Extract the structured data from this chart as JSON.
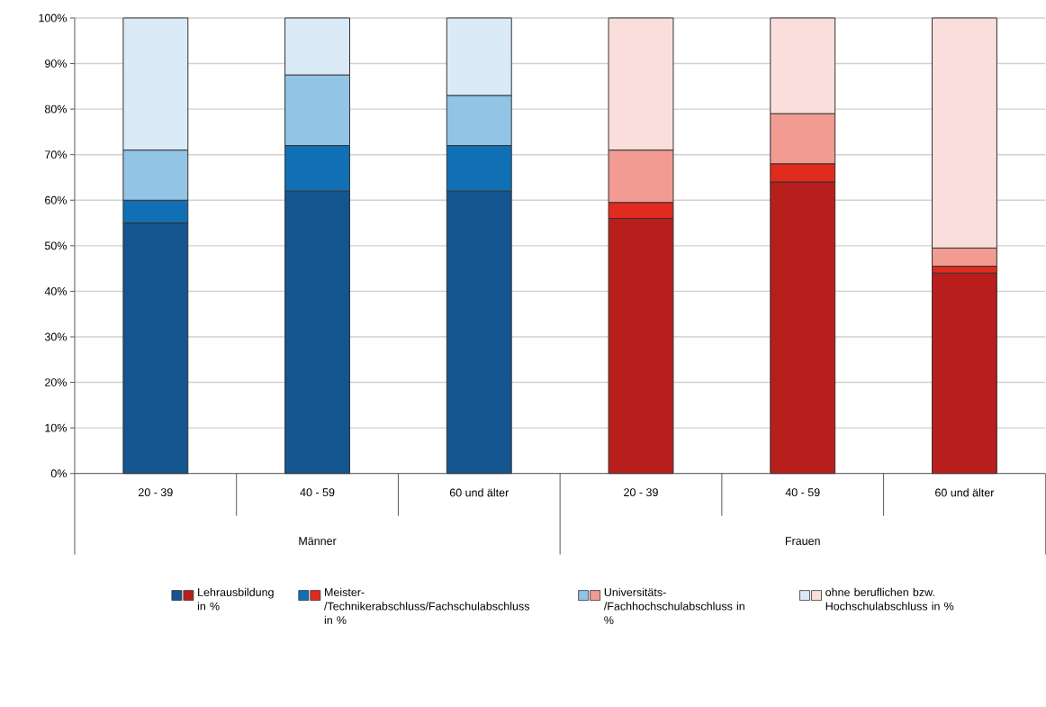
{
  "chart_data": {
    "type": "bar",
    "stacked": true,
    "categories": [
      "20 - 39",
      "40 - 59",
      "60 und älter",
      "20 - 39",
      "40 - 59",
      "60 und älter"
    ],
    "series": [
      {
        "name": "Lehrausbildung in %",
        "colors": [
          "#14548f",
          "#14548f",
          "#14548f",
          "#b81f1c",
          "#b81f1c",
          "#b81f1c"
        ],
        "values": [
          55,
          62,
          62,
          56,
          64,
          44
        ]
      },
      {
        "name": "Meister-/Technikerabschluss/Fachschulabschluss in %",
        "colors": [
          "#1170b5",
          "#1170b5",
          "#1170b5",
          "#e12b1f",
          "#e12b1f",
          "#e12b1f"
        ],
        "values": [
          5,
          10,
          10,
          3.5,
          4,
          1.5
        ]
      },
      {
        "name": "Universitäts-/Fachhochschulabschluss in %",
        "colors": [
          "#92c4e6",
          "#92c4e6",
          "#92c4e6",
          "#f19b92",
          "#f19b92",
          "#f19b92"
        ],
        "values": [
          11,
          15.5,
          11,
          11.5,
          11,
          4
        ]
      },
      {
        "name": "ohne beruflichen bzw. Hochschulabschluss in %",
        "colors": [
          "#dbeaf7",
          "#dbeaf7",
          "#dbeaf7",
          "#fadedb",
          "#fadedb",
          "#fadedb"
        ],
        "values": [
          29,
          12.5,
          17,
          29,
          21,
          50.5
        ]
      }
    ],
    "ylim": [
      0,
      100
    ],
    "yticks": [
      {
        "value": 0,
        "label": "0%"
      },
      {
        "value": 10,
        "label": "10%"
      },
      {
        "value": 20,
        "label": "20%"
      },
      {
        "value": 30,
        "label": "30%"
      },
      {
        "value": 40,
        "label": "40%"
      },
      {
        "value": 50,
        "label": "50%"
      },
      {
        "value": 60,
        "label": "60%"
      },
      {
        "value": 70,
        "label": "70%"
      },
      {
        "value": 80,
        "label": "80%"
      },
      {
        "value": 90,
        "label": "90%"
      },
      {
        "value": 100,
        "label": "100%"
      }
    ],
    "grid": "y",
    "legend": "bottom",
    "annotations": [
      "Männer",
      "Frauen"
    ]
  }
}
